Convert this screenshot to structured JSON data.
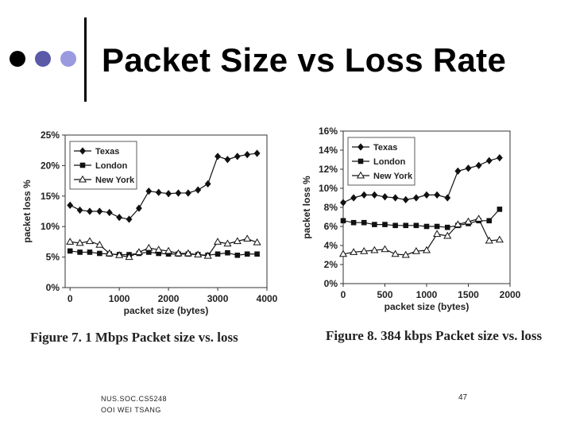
{
  "slide": {
    "title": "Packet Size vs Loss Rate",
    "footer_line1": "NUS.SOC.CS5248",
    "footer_line2": "OOI WEI TSANG",
    "page_number": "47",
    "bullet_colors": [
      "#000000",
      "#5a5aa8",
      "#9a9ae0"
    ]
  },
  "chart_data": [
    {
      "type": "line",
      "caption": "Figure 7. 1 Mbps Packet size vs. loss",
      "xlabel": "packet size (bytes)",
      "ylabel": "packet loss %",
      "xlim": [
        -100,
        4000
      ],
      "ylim": [
        0,
        25
      ],
      "xticks": [
        0,
        1000,
        2000,
        3000,
        4000
      ],
      "yticks": [
        0,
        5,
        10,
        15,
        20,
        25
      ],
      "ytick_suffix": "%",
      "grid": false,
      "legend_position": "top-left",
      "series": [
        {
          "name": "Texas",
          "marker": "diamond",
          "x": [
            0,
            200,
            400,
            600,
            800,
            1000,
            1200,
            1400,
            1600,
            1800,
            2000,
            2200,
            2400,
            2600,
            2800,
            3000,
            3200,
            3400,
            3600,
            3800
          ],
          "y": [
            13.5,
            12.7,
            12.5,
            12.5,
            12.3,
            11.5,
            11.2,
            13.0,
            15.8,
            15.6,
            15.4,
            15.5,
            15.5,
            16.0,
            17.0,
            21.5,
            21.0,
            21.5,
            21.8,
            22.0
          ]
        },
        {
          "name": "London",
          "marker": "square",
          "x": [
            0,
            200,
            400,
            600,
            800,
            1000,
            1200,
            1400,
            1600,
            1800,
            2000,
            2200,
            2400,
            2600,
            2800,
            3000,
            3200,
            3400,
            3600,
            3800
          ],
          "y": [
            6.0,
            5.8,
            5.8,
            5.6,
            5.5,
            5.4,
            5.4,
            5.6,
            5.8,
            5.6,
            5.5,
            5.5,
            5.5,
            5.4,
            5.3,
            5.5,
            5.7,
            5.3,
            5.5,
            5.5
          ]
        },
        {
          "name": "New York",
          "marker": "triangle",
          "x": [
            0,
            200,
            400,
            600,
            800,
            1000,
            1200,
            1400,
            1600,
            1800,
            2000,
            2200,
            2400,
            2600,
            2800,
            3000,
            3200,
            3400,
            3600,
            3800
          ],
          "y": [
            7.5,
            7.3,
            7.6,
            7.0,
            5.6,
            5.3,
            5.0,
            5.8,
            6.5,
            6.2,
            6.0,
            5.6,
            5.6,
            5.4,
            5.2,
            7.5,
            7.2,
            7.6,
            8.0,
            7.4
          ]
        }
      ]
    },
    {
      "type": "line",
      "caption": "Figure 8. 384 kbps Packet size vs. loss",
      "xlabel": "packet size (bytes)",
      "ylabel": "packet loss %",
      "xlim": [
        0,
        2000
      ],
      "ylim": [
        0,
        16
      ],
      "xticks": [
        0,
        500,
        1000,
        1500,
        2000
      ],
      "yticks": [
        0,
        2,
        4,
        6,
        8,
        10,
        12,
        14,
        16
      ],
      "ytick_suffix": "%",
      "grid": false,
      "legend_position": "top-left",
      "series": [
        {
          "name": "Texas",
          "marker": "diamond",
          "x": [
            0,
            125,
            250,
            375,
            500,
            625,
            750,
            875,
            1000,
            1125,
            1250,
            1375,
            1500,
            1625,
            1750,
            1875
          ],
          "y": [
            8.5,
            9.0,
            9.3,
            9.3,
            9.1,
            9.0,
            8.8,
            9.0,
            9.3,
            9.3,
            9.0,
            11.8,
            12.1,
            12.4,
            12.9,
            13.2
          ]
        },
        {
          "name": "London",
          "marker": "square",
          "x": [
            0,
            125,
            250,
            375,
            500,
            625,
            750,
            875,
            1000,
            1125,
            1250,
            1375,
            1500,
            1625,
            1750,
            1875
          ],
          "y": [
            6.6,
            6.4,
            6.4,
            6.2,
            6.2,
            6.1,
            6.1,
            6.1,
            6.0,
            6.0,
            5.9,
            6.1,
            6.3,
            6.6,
            6.6,
            7.8
          ]
        },
        {
          "name": "New York",
          "marker": "triangle",
          "x": [
            0,
            125,
            250,
            375,
            500,
            625,
            750,
            875,
            1000,
            1125,
            1250,
            1375,
            1500,
            1625,
            1750,
            1875
          ],
          "y": [
            3.1,
            3.3,
            3.4,
            3.5,
            3.6,
            3.1,
            3.0,
            3.4,
            3.5,
            5.2,
            5.0,
            6.2,
            6.5,
            6.8,
            4.5,
            4.6
          ]
        }
      ]
    }
  ]
}
